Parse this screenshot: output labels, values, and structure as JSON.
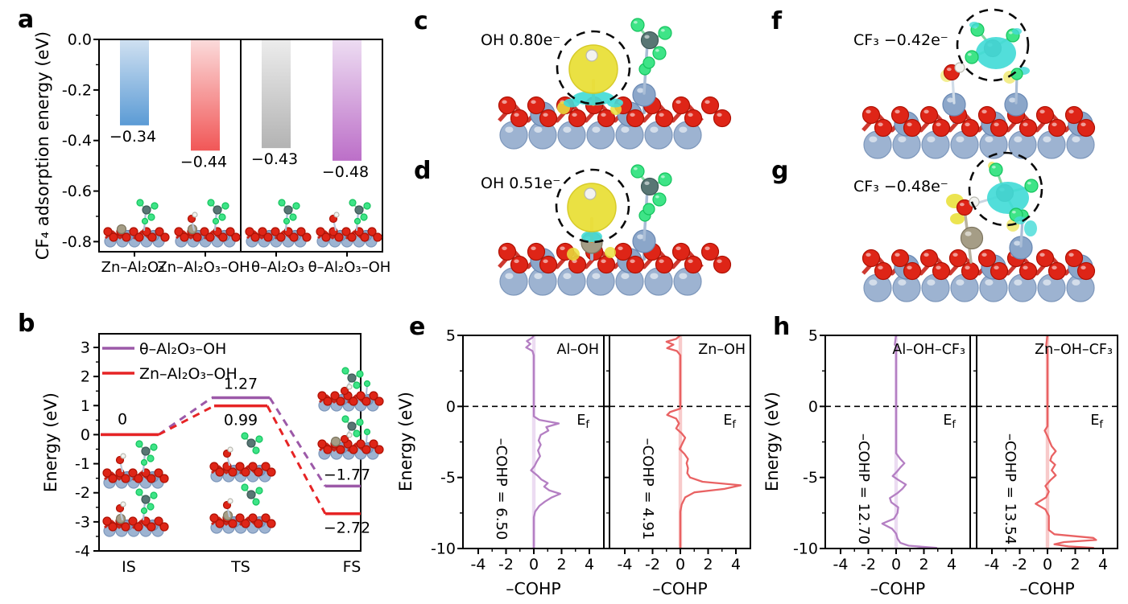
{
  "panel_letters": {
    "a": "a",
    "b": "b",
    "c": "c",
    "d": "d",
    "e": "e",
    "f": "f",
    "g": "g",
    "h": "h"
  },
  "structures": {
    "c": {
      "label": "OH 0.80e⁻"
    },
    "d": {
      "label": "OH 0.51e⁻"
    },
    "f": {
      "label": "CF₃ −0.42e⁻"
    },
    "g": {
      "label": "CF₃ −0.48e⁻"
    }
  },
  "chart_data": {
    "a": {
      "type": "bar",
      "ylabel": "CF₄ adsorption energy (eV)",
      "categories": [
        "Zn–Al₂O₃",
        "Zn–Al₂O₃–OH",
        "θ–Al₂O₃",
        "θ–Al₂O₃–OH"
      ],
      "values": [
        -0.34,
        -0.44,
        -0.43,
        -0.48
      ],
      "value_labels": [
        "−0.34",
        "−0.44",
        "−0.43",
        "−0.48"
      ],
      "ylim": [
        -0.84,
        0
      ],
      "yticks": [
        0,
        -0.2,
        -0.4,
        -0.6,
        -0.8
      ],
      "ytick_labels": [
        "0.0",
        "-0.2",
        "-0.4",
        "-0.6",
        "-0.8"
      ],
      "bar_colors": [
        [
          "#cfe0f1",
          "#5b9bd5"
        ],
        [
          "#fbdada",
          "#f15757"
        ],
        [
          "#ececec",
          "#b3b3b3"
        ],
        [
          "#eddcf2",
          "#bc6fc8"
        ]
      ],
      "group_divider_after": 2
    },
    "b": {
      "type": "energy-profile",
      "ylabel": "Energy (eV)",
      "ylim": [
        -4,
        3.5
      ],
      "yticks": [
        3,
        2,
        1,
        0,
        -1,
        -2,
        -3,
        -4
      ],
      "stations": [
        "IS",
        "TS",
        "FS"
      ],
      "series": [
        {
          "name": "θ–Al₂O₃–OH",
          "color": "#9c59a8",
          "values": [
            0,
            1.27,
            -1.77
          ]
        },
        {
          "name": "Zn–Al₂O₃–OH",
          "color": "#e62425",
          "values": [
            0,
            0.99,
            -2.72
          ]
        }
      ],
      "level_labels": {
        "is": "0",
        "ts_purple": "1.27",
        "ts_red": "0.99",
        "fs_purple": "−1.77",
        "fs_red": "−2.72"
      }
    },
    "e": {
      "type": "cohp",
      "ylabel": "Energy (eV)",
      "xlabel": "–COHP",
      "ylim": [
        -10,
        5
      ],
      "yticks": [
        5,
        0,
        -5,
        -10
      ],
      "ytick_labels": [
        "5",
        "0",
        "-5",
        "-10"
      ],
      "xticks": [
        -4,
        -2,
        0,
        2,
        4
      ],
      "xtick_labels": [
        "-4",
        "-2",
        "0",
        "2",
        "4"
      ],
      "fermi": {
        "main": "E",
        "sub": "f"
      },
      "plots": [
        {
          "name": "Al–OH",
          "icohp": "–COHP = 6.50",
          "color": "#b47fc3",
          "band": "#ecdcf2",
          "curve": [
            [
              0,
              5
            ],
            [
              -0.1,
              4.85
            ],
            [
              -0.5,
              4.6
            ],
            [
              -0.25,
              4.4
            ],
            [
              -0.55,
              4.15
            ],
            [
              -0.1,
              3.9
            ],
            [
              0,
              3.6
            ],
            [
              0,
              -0.7
            ],
            [
              0.4,
              -0.95
            ],
            [
              1.8,
              -1.2
            ],
            [
              0.9,
              -1.45
            ],
            [
              1.05,
              -1.7
            ],
            [
              0.5,
              -2.0
            ],
            [
              0.35,
              -2.4
            ],
            [
              0.5,
              -2.7
            ],
            [
              0.3,
              -3.1
            ],
            [
              0.45,
              -3.5
            ],
            [
              0.2,
              -3.9
            ],
            [
              0.05,
              -4.2
            ],
            [
              -0.2,
              -4.5
            ],
            [
              0.3,
              -4.9
            ],
            [
              0.55,
              -5.15
            ],
            [
              1.0,
              -5.4
            ],
            [
              0.75,
              -5.65
            ],
            [
              1.1,
              -5.9
            ],
            [
              1.9,
              -6.15
            ],
            [
              1.3,
              -6.4
            ],
            [
              0.8,
              -6.7
            ],
            [
              0.4,
              -7.0
            ],
            [
              0.1,
              -7.4
            ],
            [
              0,
              -7.8
            ],
            [
              0,
              -10
            ]
          ]
        },
        {
          "name": "Zn–OH",
          "icohp": "–COHP = 4.91",
          "color": "#e96263",
          "band": "#f8caca",
          "curve": [
            [
              0,
              5
            ],
            [
              -0.3,
              4.75
            ],
            [
              -1.0,
              4.55
            ],
            [
              -0.5,
              4.35
            ],
            [
              -0.95,
              4.1
            ],
            [
              -0.25,
              3.9
            ],
            [
              0,
              3.6
            ],
            [
              0,
              -0.15
            ],
            [
              -0.75,
              -0.4
            ],
            [
              -0.95,
              -0.6
            ],
            [
              -0.3,
              -0.85
            ],
            [
              -0.1,
              -1.2
            ],
            [
              -0.3,
              -1.55
            ],
            [
              0.1,
              -1.9
            ],
            [
              0.35,
              -2.2
            ],
            [
              0.15,
              -2.6
            ],
            [
              -0.05,
              -3.0
            ],
            [
              0.3,
              -3.35
            ],
            [
              0.55,
              -3.7
            ],
            [
              0.45,
              -4.0
            ],
            [
              0.55,
              -4.35
            ],
            [
              0.5,
              -4.7
            ],
            [
              0.7,
              -5.0
            ],
            [
              1.6,
              -5.3
            ],
            [
              4.35,
              -5.55
            ],
            [
              3.2,
              -5.8
            ],
            [
              1.0,
              -6.05
            ],
            [
              0.35,
              -6.4
            ],
            [
              0.1,
              -6.9
            ],
            [
              0,
              -7.4
            ],
            [
              0,
              -10
            ]
          ]
        }
      ]
    },
    "h": {
      "type": "cohp",
      "ylabel": "Energy (eV)",
      "xlabel": "–COHP",
      "ylim": [
        -10,
        5
      ],
      "yticks": [
        5,
        0,
        -5,
        -10
      ],
      "ytick_labels": [
        "5",
        "0",
        "-5",
        "-10"
      ],
      "xticks": [
        -4,
        -2,
        0,
        2,
        4
      ],
      "xtick_labels": [
        "-4",
        "-2",
        "0",
        "2",
        "4"
      ],
      "fermi": {
        "main": "E",
        "sub": "f"
      },
      "plots": [
        {
          "name": "Al–OH–CF₃",
          "icohp": "–COHP = 12.70",
          "color": "#b47fc3",
          "band": "#ecdcf2",
          "curve": [
            [
              0,
              5
            ],
            [
              -0.1,
              4.35
            ],
            [
              0.1,
              4.15
            ],
            [
              0,
              3.9
            ],
            [
              0,
              -3.3
            ],
            [
              0.3,
              -3.7
            ],
            [
              0.6,
              -4.0
            ],
            [
              0.3,
              -4.3
            ],
            [
              0.05,
              -4.6
            ],
            [
              -0.25,
              -4.9
            ],
            [
              0.2,
              -5.2
            ],
            [
              0.7,
              -5.5
            ],
            [
              0.45,
              -5.8
            ],
            [
              0.1,
              -6.1
            ],
            [
              -0.45,
              -6.45
            ],
            [
              -0.35,
              -6.75
            ],
            [
              0.15,
              -7.1
            ],
            [
              0.1,
              -7.5
            ],
            [
              -0.15,
              -7.9
            ],
            [
              -1.0,
              -8.25
            ],
            [
              -0.3,
              -8.6
            ],
            [
              0,
              -8.95
            ],
            [
              0.1,
              -9.3
            ],
            [
              0.3,
              -9.6
            ],
            [
              0.9,
              -9.8
            ],
            [
              2.9,
              -9.95
            ],
            [
              1.5,
              -10
            ]
          ]
        },
        {
          "name": "Zn–OH–CF₃",
          "icohp": "–COHP = 13.54",
          "color": "#e96263",
          "band": "#f8caca",
          "curve": [
            [
              0,
              5
            ],
            [
              -0.1,
              4.25
            ],
            [
              0,
              4.0
            ],
            [
              0,
              -1.4
            ],
            [
              -0.2,
              -1.7
            ],
            [
              0,
              -2.1
            ],
            [
              0.3,
              -2.8
            ],
            [
              0.6,
              -3.15
            ],
            [
              0.3,
              -3.5
            ],
            [
              0.2,
              -3.8
            ],
            [
              0.55,
              -4.1
            ],
            [
              0.3,
              -4.5
            ],
            [
              0.6,
              -4.85
            ],
            [
              0.2,
              -5.2
            ],
            [
              -0.15,
              -5.6
            ],
            [
              0.1,
              -6.0
            ],
            [
              -0.1,
              -6.4
            ],
            [
              -0.85,
              -6.85
            ],
            [
              -0.15,
              -7.25
            ],
            [
              0.1,
              -7.7
            ],
            [
              0.1,
              -8.7
            ],
            [
              0.5,
              -9.0
            ],
            [
              3.3,
              -9.25
            ],
            [
              3.5,
              -9.4
            ],
            [
              1.2,
              -9.55
            ],
            [
              0.5,
              -9.7
            ],
            [
              1.5,
              -9.85
            ],
            [
              3.3,
              -9.95
            ],
            [
              2.0,
              -10
            ]
          ]
        }
      ]
    }
  }
}
